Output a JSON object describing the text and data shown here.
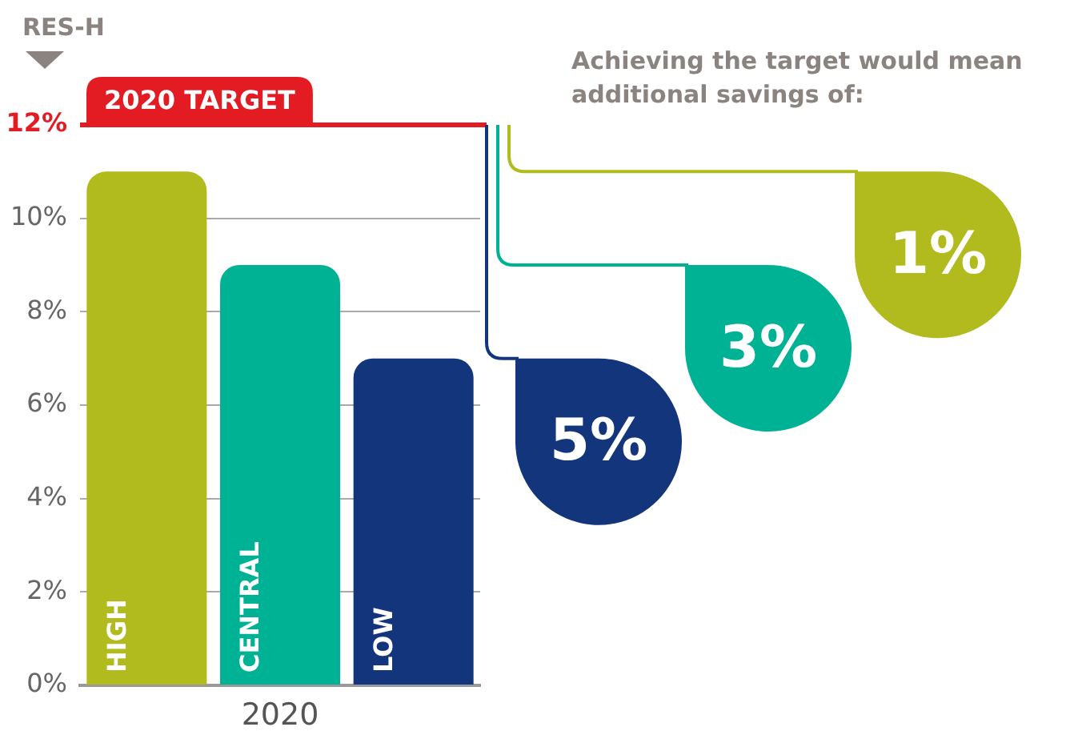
{
  "chart_data": {
    "type": "bar",
    "ylabel": "RES-H",
    "xlabel": "2020",
    "categories": [
      "HIGH",
      "CENTRAL",
      "LOW"
    ],
    "values": [
      11,
      9,
      7
    ],
    "colors": [
      "#b1bb1e",
      "#00b294",
      "#13357c"
    ],
    "ylim": [
      0,
      12
    ],
    "yticks": [
      {
        "value": 0,
        "label": "0%"
      },
      {
        "value": 2,
        "label": "2%"
      },
      {
        "value": 4,
        "label": "4%"
      },
      {
        "value": 6,
        "label": "6%"
      },
      {
        "value": 8,
        "label": "8%"
      },
      {
        "value": 10,
        "label": "10%"
      },
      {
        "value": 12,
        "label": "12%"
      }
    ],
    "ref_lines": [
      {
        "axis": "y",
        "value": 12,
        "label": "2020 TARGET",
        "color": "#e31b23"
      }
    ],
    "annotations": [
      "Achieving the target would mean additional savings of:",
      "1%",
      "3%",
      "5%"
    ],
    "grid": "y",
    "legend": false
  }
}
